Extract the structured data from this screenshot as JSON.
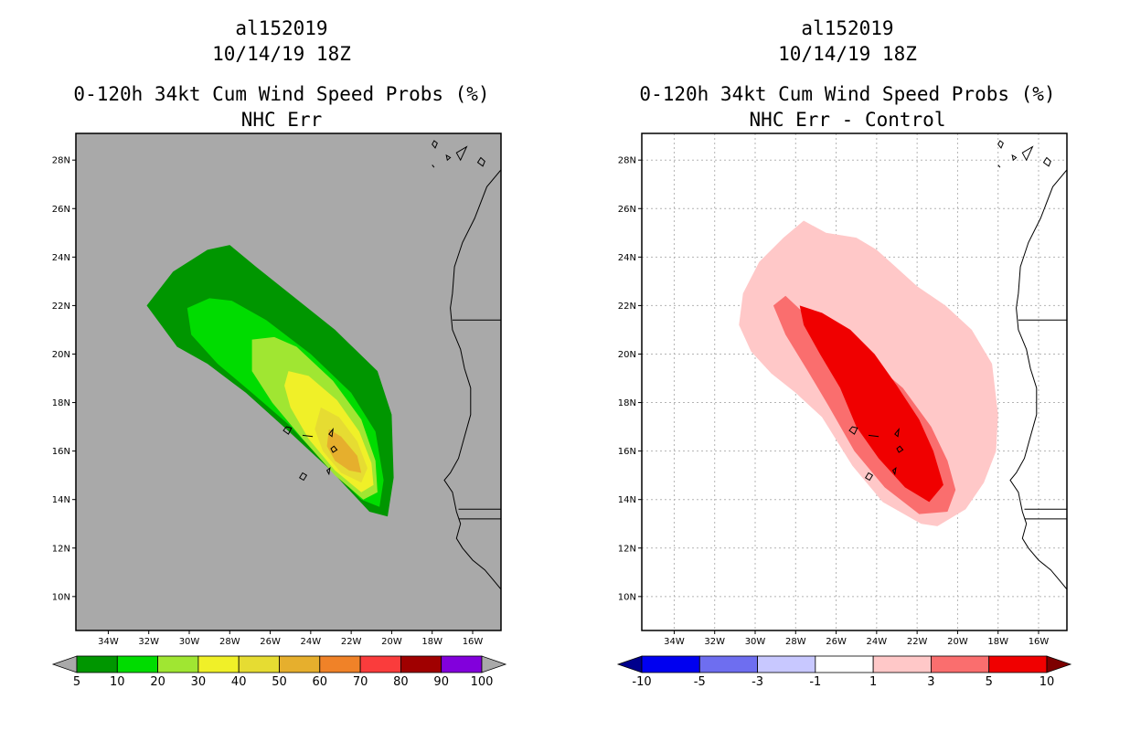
{
  "chart_data": [
    {
      "type": "map-contour",
      "title_lines": [
        "al152019",
        "10/14/19 18Z",
        "0-120h 34kt Cum Wind Speed Probs (%)",
        "NHC Err"
      ],
      "x_ticks": [
        "34W",
        "32W",
        "30W",
        "28W",
        "26W",
        "24W",
        "22W",
        "20W",
        "18W",
        "16W"
      ],
      "y_ticks": [
        "28N",
        "26N",
        "24N",
        "22N",
        "20N",
        "18N",
        "16N",
        "14N",
        "12N",
        "10N"
      ],
      "lon_range": [
        -35.6,
        -14.6
      ],
      "lat_range": [
        8.6,
        29.1
      ],
      "gridlines": false,
      "background": "#a9a9a9",
      "colorbar": {
        "labels": [
          "5",
          "10",
          "20",
          "30",
          "40",
          "50",
          "60",
          "70",
          "80",
          "90",
          "100"
        ],
        "colors": [
          "#009600",
          "#00dc00",
          "#a0e632",
          "#f0f028",
          "#e6dc32",
          "#e6af2d",
          "#f08228",
          "#fa3c3c",
          "#a00000",
          "#8200dc"
        ],
        "under": "#a9a9a9",
        "over": "#a9a9a9"
      },
      "contours": [
        {
          "level": "5-10",
          "color": "#009600",
          "points": [
            [
              -32.1,
              22.0
            ],
            [
              -30.8,
              23.4
            ],
            [
              -29.1,
              24.3
            ],
            [
              -28.0,
              24.5
            ],
            [
              -26.7,
              23.6
            ],
            [
              -24.9,
              22.4
            ],
            [
              -22.8,
              21.0
            ],
            [
              -20.7,
              19.3
            ],
            [
              -20.0,
              17.5
            ],
            [
              -19.9,
              14.9
            ],
            [
              -20.2,
              13.3
            ],
            [
              -21.1,
              13.5
            ],
            [
              -23.0,
              15.2
            ],
            [
              -25.2,
              16.9
            ],
            [
              -27.2,
              18.4
            ],
            [
              -29.1,
              19.6
            ],
            [
              -30.6,
              20.3
            ]
          ]
        },
        {
          "level": "10-20",
          "color": "#00dc00",
          "points": [
            [
              -30.1,
              21.9
            ],
            [
              -29.0,
              22.3
            ],
            [
              -27.9,
              22.2
            ],
            [
              -26.2,
              21.4
            ],
            [
              -24.0,
              20.0
            ],
            [
              -22.0,
              18.4
            ],
            [
              -20.8,
              16.8
            ],
            [
              -20.4,
              14.8
            ],
            [
              -20.6,
              13.7
            ],
            [
              -21.5,
              14.0
            ],
            [
              -23.3,
              15.5
            ],
            [
              -25.1,
              17.1
            ],
            [
              -26.9,
              18.4
            ],
            [
              -28.6,
              19.6
            ],
            [
              -29.9,
              20.8
            ]
          ]
        },
        {
          "level": "20-30",
          "color": "#a0e632",
          "points": [
            [
              -26.9,
              20.6
            ],
            [
              -25.8,
              20.7
            ],
            [
              -24.7,
              20.3
            ],
            [
              -22.9,
              18.9
            ],
            [
              -21.5,
              17.3
            ],
            [
              -20.8,
              15.6
            ],
            [
              -20.7,
              14.3
            ],
            [
              -21.4,
              14.0
            ],
            [
              -22.8,
              15.0
            ],
            [
              -24.4,
              16.5
            ],
            [
              -25.9,
              18.0
            ],
            [
              -26.9,
              19.3
            ]
          ]
        },
        {
          "level": "30-40",
          "color": "#f0f028",
          "points": [
            [
              -25.1,
              19.3
            ],
            [
              -24.1,
              19.1
            ],
            [
              -22.7,
              18.1
            ],
            [
              -21.6,
              16.8
            ],
            [
              -21.0,
              15.5
            ],
            [
              -20.9,
              14.6
            ],
            [
              -21.5,
              14.3
            ],
            [
              -22.8,
              15.2
            ],
            [
              -24.1,
              16.5
            ],
            [
              -25.0,
              17.8
            ],
            [
              -25.3,
              18.7
            ]
          ]
        },
        {
          "level": "40-50",
          "color": "#e6dc32",
          "points": [
            [
              -23.5,
              17.8
            ],
            [
              -22.6,
              17.4
            ],
            [
              -21.7,
              16.4
            ],
            [
              -21.2,
              15.3
            ],
            [
              -21.5,
              14.7
            ],
            [
              -22.5,
              15.1
            ],
            [
              -23.4,
              16.0
            ],
            [
              -23.8,
              16.9
            ]
          ]
        },
        {
          "level": "50-60",
          "color": "#e6af2d",
          "points": [
            [
              -23.1,
              16.9
            ],
            [
              -22.5,
              16.6
            ],
            [
              -21.7,
              15.8
            ],
            [
              -21.5,
              15.1
            ],
            [
              -22.1,
              15.2
            ],
            [
              -22.8,
              15.6
            ],
            [
              -23.2,
              16.2
            ]
          ]
        }
      ]
    },
    {
      "type": "map-contour",
      "title_lines": [
        "al152019",
        "10/14/19 18Z",
        "0-120h 34kt Cum Wind Speed Probs (%)",
        "NHC Err - Control"
      ],
      "x_ticks": [
        "34W",
        "32W",
        "30W",
        "28W",
        "26W",
        "24W",
        "22W",
        "20W",
        "18W",
        "16W"
      ],
      "y_ticks": [
        "28N",
        "26N",
        "24N",
        "22N",
        "20N",
        "18N",
        "16N",
        "14N",
        "12N",
        "10N"
      ],
      "lon_range": [
        -35.6,
        -14.6
      ],
      "lat_range": [
        8.6,
        29.1
      ],
      "gridlines": true,
      "background": "#ffffff",
      "colorbar": {
        "labels": [
          "-10",
          "-5",
          "-3",
          "-1",
          "1",
          "3",
          "5",
          "10"
        ],
        "colors": [
          "#0000f0",
          "#6e6ef0",
          "#c8c8ff",
          "#ffffff",
          "#ffc8c8",
          "#fa6e6e",
          "#f00000"
        ],
        "under": "#00008c",
        "over": "#7d0000"
      },
      "contours": [
        {
          "level": "1-3",
          "color": "#ffc8c8",
          "points": [
            [
              -30.6,
              22.5
            ],
            [
              -29.8,
              23.8
            ],
            [
              -28.6,
              24.8
            ],
            [
              -27.6,
              25.5
            ],
            [
              -26.5,
              25.0
            ],
            [
              -25.0,
              24.8
            ],
            [
              -24.0,
              24.3
            ],
            [
              -23.2,
              23.7
            ],
            [
              -22.0,
              22.8
            ],
            [
              -20.6,
              22.0
            ],
            [
              -19.3,
              21.0
            ],
            [
              -18.3,
              19.6
            ],
            [
              -18.0,
              17.5
            ],
            [
              -18.1,
              16.0
            ],
            [
              -18.7,
              14.7
            ],
            [
              -19.6,
              13.6
            ],
            [
              -21.0,
              12.9
            ],
            [
              -21.8,
              13.0
            ],
            [
              -23.7,
              13.9
            ],
            [
              -25.2,
              15.4
            ],
            [
              -26.7,
              17.4
            ],
            [
              -28.0,
              18.4
            ],
            [
              -29.2,
              19.2
            ],
            [
              -30.2,
              20.1
            ],
            [
              -30.8,
              21.2
            ]
          ]
        },
        {
          "level": "3-5",
          "color": "#fa6e6e",
          "points": [
            [
              -28.5,
              22.4
            ],
            [
              -27.6,
              21.7
            ],
            [
              -26.5,
              21.2
            ],
            [
              -25.2,
              20.5
            ],
            [
              -24.1,
              19.6
            ],
            [
              -22.7,
              18.6
            ],
            [
              -21.3,
              17.0
            ],
            [
              -20.5,
              15.6
            ],
            [
              -20.1,
              14.4
            ],
            [
              -20.5,
              13.5
            ],
            [
              -21.9,
              13.4
            ],
            [
              -23.6,
              14.5
            ],
            [
              -25.1,
              16.0
            ],
            [
              -26.4,
              17.9
            ],
            [
              -27.4,
              19.3
            ],
            [
              -28.5,
              20.8
            ],
            [
              -29.1,
              22.0
            ]
          ]
        },
        {
          "level": "5-10",
          "color": "#f00000",
          "points": [
            [
              -27.8,
              22.0
            ],
            [
              -26.7,
              21.7
            ],
            [
              -25.3,
              21.0
            ],
            [
              -24.1,
              20.0
            ],
            [
              -23.0,
              18.7
            ],
            [
              -21.9,
              17.3
            ],
            [
              -21.2,
              16.0
            ],
            [
              -20.7,
              14.6
            ],
            [
              -21.4,
              13.9
            ],
            [
              -22.6,
              14.5
            ],
            [
              -23.9,
              15.7
            ],
            [
              -25.0,
              17.0
            ],
            [
              -25.8,
              18.6
            ],
            [
              -26.8,
              20.0
            ],
            [
              -27.6,
              21.2
            ]
          ]
        }
      ]
    }
  ]
}
